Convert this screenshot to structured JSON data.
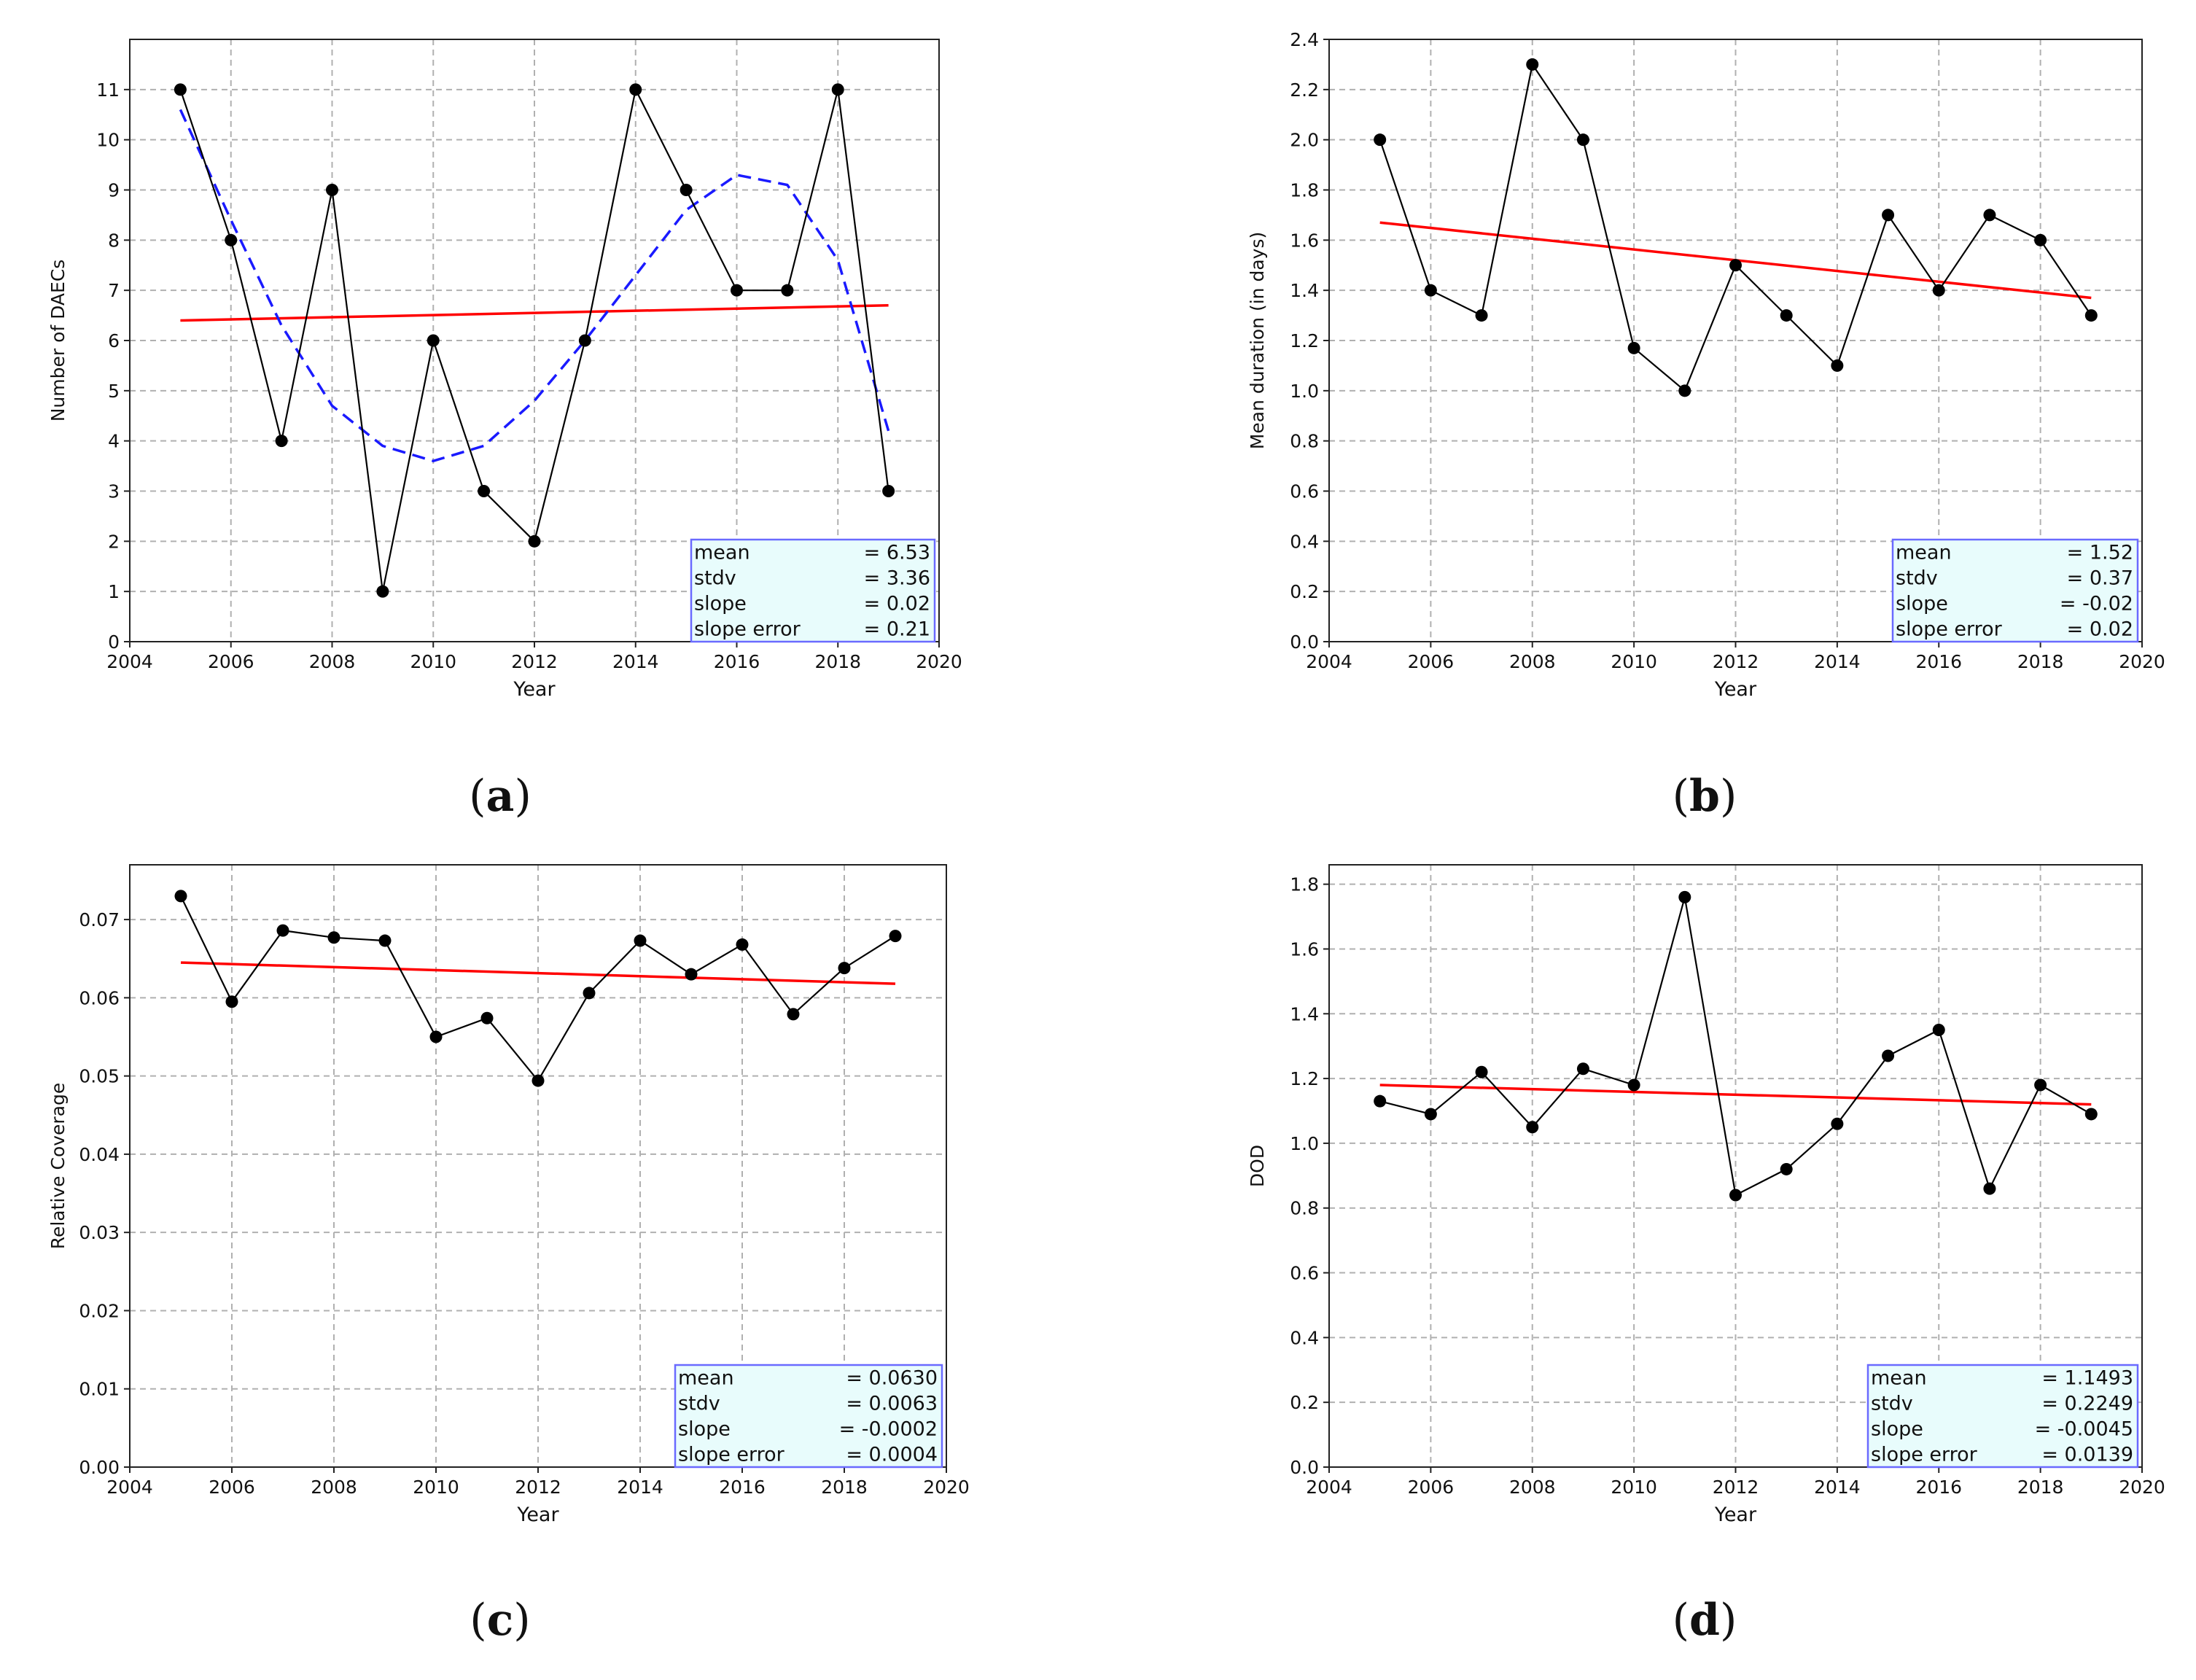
{
  "colors": {
    "data_line": "#000000",
    "trend_line": "#ff0000",
    "smooth_line": "#1a1aff",
    "grid": "#b0b0b0",
    "stats_fill": "#e8fcfc",
    "stats_border": "#6a6aff"
  },
  "chart_data": [
    {
      "type": "line",
      "panel_label": "(a)",
      "letter": "a",
      "xlabel": "Year",
      "ylabel": "Number of DAECs",
      "xlim": [
        2004,
        2020
      ],
      "ylim": [
        0,
        12
      ],
      "xticks": [
        2004,
        2006,
        2008,
        2010,
        2012,
        2014,
        2016,
        2018,
        2020
      ],
      "yticks": [
        0,
        1,
        2,
        3,
        4,
        5,
        6,
        7,
        8,
        9,
        10,
        11
      ],
      "ytick_labels": [
        "0",
        "1",
        "2",
        "3",
        "4",
        "5",
        "6",
        "7",
        "8",
        "9",
        "10",
        "11"
      ],
      "grid": true,
      "series": [
        {
          "name": "annual",
          "style": "black-line-markers",
          "x": [
            2005,
            2006,
            2007,
            2008,
            2009,
            2010,
            2011,
            2012,
            2013,
            2014,
            2015,
            2016,
            2017,
            2018,
            2019
          ],
          "values": [
            11,
            8,
            4,
            9,
            1,
            6,
            3,
            2,
            6,
            11,
            9,
            7,
            7,
            11,
            3
          ]
        },
        {
          "name": "trend",
          "style": "red-line",
          "x": [
            2005,
            2019
          ],
          "values": [
            6.4,
            6.7
          ]
        },
        {
          "name": "smoothed",
          "style": "blue-dashed",
          "x": [
            2005,
            2006,
            2007,
            2008,
            2009,
            2010,
            2011,
            2012,
            2013,
            2014,
            2015,
            2016,
            2017,
            2018,
            2019
          ],
          "values": [
            10.6,
            8.4,
            6.3,
            4.7,
            3.9,
            3.6,
            3.9,
            4.8,
            6.0,
            7.3,
            8.6,
            9.3,
            9.1,
            7.6,
            4.2
          ]
        }
      ],
      "stats": [
        {
          "label": "mean",
          "value": "=  6.53"
        },
        {
          "label": "stdv",
          "value": "=  3.36"
        },
        {
          "label": "slope",
          "value": "=  0.02"
        },
        {
          "label": "slope error",
          "value": "=  0.21"
        }
      ]
    },
    {
      "type": "line",
      "panel_label": "(b)",
      "letter": "b",
      "xlabel": "Year",
      "ylabel": "Mean duration (in days)",
      "xlim": [
        2004,
        2020
      ],
      "ylim": [
        0,
        2.4
      ],
      "xticks": [
        2004,
        2006,
        2008,
        2010,
        2012,
        2014,
        2016,
        2018,
        2020
      ],
      "yticks": [
        0,
        0.2,
        0.4,
        0.6,
        0.8,
        1.0,
        1.2,
        1.4,
        1.6,
        1.8,
        2.0,
        2.2,
        2.4
      ],
      "ytick_labels": [
        "0.0",
        "0.2",
        "0.4",
        "0.6",
        "0.8",
        "1.0",
        "1.2",
        "1.4",
        "1.6",
        "1.8",
        "2.0",
        "2.2",
        "2.4"
      ],
      "grid": true,
      "series": [
        {
          "name": "annual",
          "style": "black-line-markers",
          "x": [
            2005,
            2006,
            2007,
            2008,
            2009,
            2010,
            2011,
            2012,
            2013,
            2014,
            2015,
            2016,
            2017,
            2018,
            2019
          ],
          "values": [
            2.0,
            1.4,
            1.3,
            2.3,
            2.0,
            1.17,
            1.0,
            1.5,
            1.3,
            1.1,
            1.7,
            1.4,
            1.7,
            1.6,
            1.3
          ]
        },
        {
          "name": "trend",
          "style": "red-line",
          "x": [
            2005,
            2019
          ],
          "values": [
            1.67,
            1.37
          ]
        }
      ],
      "stats": [
        {
          "label": "mean",
          "value": "=  1.52"
        },
        {
          "label": "stdv",
          "value": "=  0.37"
        },
        {
          "label": "slope",
          "value": "= -0.02"
        },
        {
          "label": "slope error",
          "value": "=  0.02"
        }
      ]
    },
    {
      "type": "line",
      "panel_label": "(c)",
      "letter": "c",
      "xlabel": "Year",
      "ylabel": "Relative Coverage",
      "xlim": [
        2004,
        2020
      ],
      "ylim": [
        0,
        0.077
      ],
      "xticks": [
        2004,
        2006,
        2008,
        2010,
        2012,
        2014,
        2016,
        2018,
        2020
      ],
      "yticks": [
        0,
        0.01,
        0.02,
        0.03,
        0.04,
        0.05,
        0.06,
        0.07
      ],
      "ytick_labels": [
        "0.00",
        "0.01",
        "0.02",
        "0.03",
        "0.04",
        "0.05",
        "0.06",
        "0.07"
      ],
      "grid": true,
      "series": [
        {
          "name": "annual",
          "style": "black-line-markers",
          "x": [
            2005,
            2006,
            2007,
            2008,
            2009,
            2010,
            2011,
            2012,
            2013,
            2014,
            2015,
            2016,
            2017,
            2018,
            2019
          ],
          "values": [
            0.073,
            0.0595,
            0.0686,
            0.0677,
            0.0673,
            0.055,
            0.0574,
            0.0494,
            0.0606,
            0.0673,
            0.063,
            0.0668,
            0.0579,
            0.0638,
            0.0679
          ]
        },
        {
          "name": "trend",
          "style": "red-line",
          "x": [
            2005,
            2019
          ],
          "values": [
            0.0645,
            0.0618
          ]
        }
      ],
      "stats": [
        {
          "label": "mean",
          "value": "= 0.0630"
        },
        {
          "label": "stdv",
          "value": "= 0.0063"
        },
        {
          "label": "slope",
          "value": "= -0.0002"
        },
        {
          "label": "slope error",
          "value": "= 0.0004"
        }
      ]
    },
    {
      "type": "line",
      "panel_label": "(d)",
      "letter": "d",
      "xlabel": "Year",
      "ylabel": "DOD",
      "xlim": [
        2004,
        2020
      ],
      "ylim": [
        0,
        1.86
      ],
      "xticks": [
        2004,
        2006,
        2008,
        2010,
        2012,
        2014,
        2016,
        2018,
        2020
      ],
      "yticks": [
        0,
        0.2,
        0.4,
        0.6,
        0.8,
        1.0,
        1.2,
        1.4,
        1.6,
        1.8
      ],
      "ytick_labels": [
        "0.0",
        "0.2",
        "0.4",
        "0.6",
        "0.8",
        "1.0",
        "1.2",
        "1.4",
        "1.6",
        "1.8"
      ],
      "grid": true,
      "series": [
        {
          "name": "annual",
          "style": "black-line-markers",
          "x": [
            2005,
            2006,
            2007,
            2008,
            2009,
            2010,
            2011,
            2012,
            2013,
            2014,
            2015,
            2016,
            2017,
            2018,
            2019
          ],
          "values": [
            1.13,
            1.09,
            1.22,
            1.05,
            1.23,
            1.18,
            1.76,
            0.84,
            0.92,
            1.06,
            1.27,
            1.35,
            0.86,
            1.18,
            1.09
          ]
        },
        {
          "name": "trend",
          "style": "red-line",
          "x": [
            2005,
            2019
          ],
          "values": [
            1.18,
            1.12
          ]
        }
      ],
      "stats": [
        {
          "label": "mean",
          "value": "= 1.1493"
        },
        {
          "label": "stdv",
          "value": "= 0.2249"
        },
        {
          "label": "slope",
          "value": "= -0.0045"
        },
        {
          "label": "slope error",
          "value": "= 0.0139"
        }
      ]
    }
  ]
}
